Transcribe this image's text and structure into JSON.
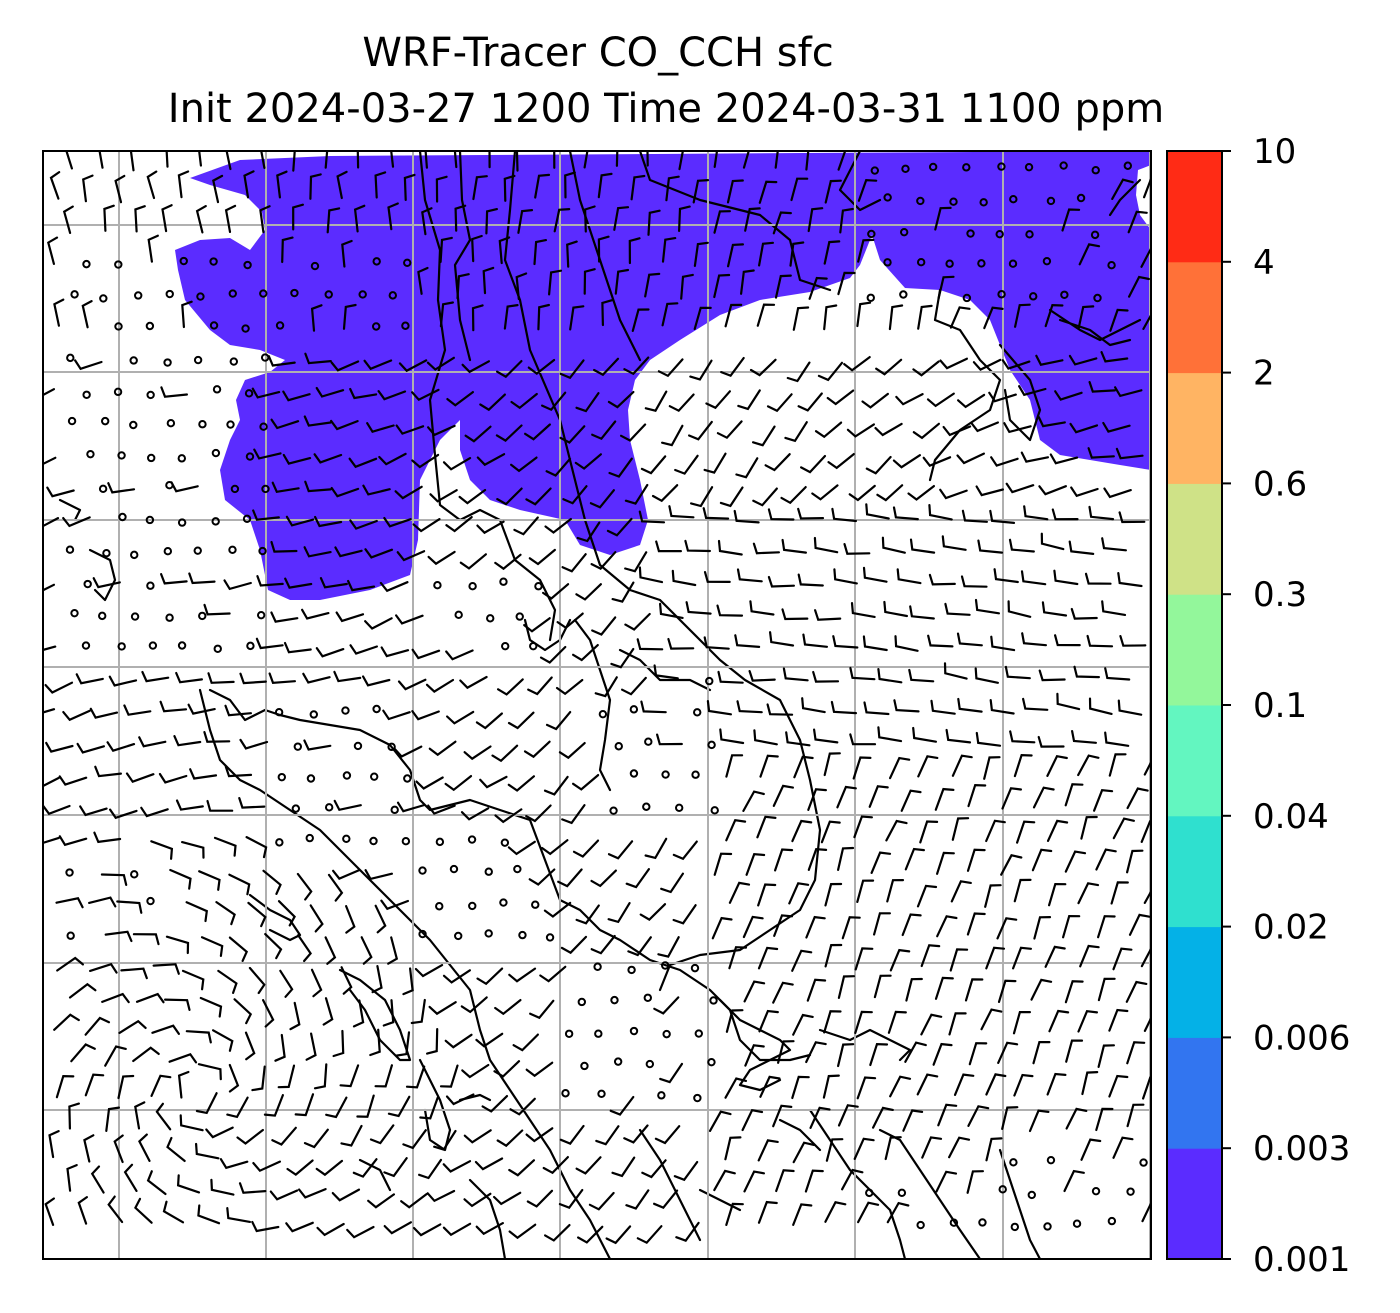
{
  "title": {
    "line1": "WRF-Tracer CO_CCH sfc",
    "line2": "Init 2024-03-27 1200 Time 2024-03-31 1100 ppm"
  },
  "colorbar": {
    "levels": [
      "0.001",
      "0.003",
      "0.006",
      "0.02",
      "0.04",
      "0.1",
      "0.3",
      "0.6",
      "2",
      "4",
      "10"
    ],
    "colors": [
      "#5b2cff",
      "#3275f0",
      "#04b1e7",
      "#2fe0cf",
      "#63f6c0",
      "#93f79b",
      "#cfe287",
      "#ffb463",
      "#ff7138",
      "#ff2b15"
    ]
  },
  "map": {
    "plume_color": "#5b2cff",
    "coastline_color": "#000000",
    "grid_color": "#b0b0b0",
    "barb_color": "#000000"
  }
}
